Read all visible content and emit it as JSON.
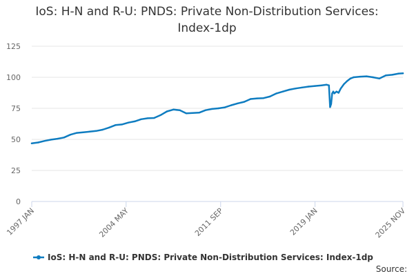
{
  "colors": {
    "series": "#0e7cc0"
  },
  "chart_data": {
    "type": "line",
    "title": "IoS: H-N and R-U: PNDS: Private Non-Distribution Services: Index-1dp",
    "title_lines": [
      "IoS: H-N and R-U: PNDS: Private Non-Distribution Services:",
      "Index-1dp"
    ],
    "xlabel": "",
    "ylabel": "",
    "ylim": [
      0,
      125
    ],
    "yticks": [
      0,
      25,
      50,
      75,
      100,
      125
    ],
    "xlim": [
      1997.0,
      2025.83
    ],
    "xtick_values": [
      1997.0,
      2004.33,
      2011.67,
      2019.0,
      2025.83
    ],
    "xtick_labels": [
      "1997 JAN",
      "2004 MAY",
      "2011 SEP",
      "2019 JAN",
      "2025 NOV"
    ],
    "grid": true,
    "legend_position": "bottom",
    "source_label": "Source:",
    "series": [
      {
        "name": "IoS: H-N and R-U: PNDS: Private Non-Distribution Services: Index-1dp",
        "x": [
          1997.0,
          1997.5,
          1998.0,
          1998.5,
          1999.0,
          1999.5,
          2000.0,
          2000.5,
          2001.0,
          2001.5,
          2002.0,
          2002.5,
          2003.0,
          2003.5,
          2004.0,
          2004.5,
          2005.0,
          2005.5,
          2006.0,
          2006.5,
          2007.0,
          2007.5,
          2008.0,
          2008.5,
          2009.0,
          2009.5,
          2010.0,
          2010.5,
          2011.0,
          2011.5,
          2012.0,
          2012.5,
          2013.0,
          2013.5,
          2014.0,
          2014.5,
          2015.0,
          2015.5,
          2016.0,
          2016.5,
          2017.0,
          2017.5,
          2018.0,
          2018.5,
          2019.0,
          2019.5,
          2019.9,
          2020.08,
          2020.17,
          2020.25,
          2020.33,
          2020.42,
          2020.5,
          2020.67,
          2020.83,
          2021.0,
          2021.25,
          2021.5,
          2021.75,
          2022.0,
          2022.5,
          2023.0,
          2023.5,
          2024.0,
          2024.5,
          2025.0,
          2025.5,
          2025.83
        ],
        "values": [
          46.8,
          47.5,
          48.8,
          49.8,
          50.5,
          51.5,
          53.8,
          55.2,
          55.7,
          56.2,
          56.8,
          57.8,
          59.5,
          61.5,
          62.0,
          63.5,
          64.5,
          66.2,
          67.0,
          67.2,
          69.5,
          72.5,
          74.0,
          73.5,
          71.0,
          71.2,
          71.5,
          73.5,
          74.5,
          75.0,
          75.8,
          77.5,
          79.0,
          80.2,
          82.5,
          83.0,
          83.2,
          84.5,
          87.0,
          88.5,
          90.0,
          91.0,
          91.8,
          92.5,
          93.0,
          93.5,
          94.0,
          93.5,
          76.0,
          78.5,
          87.0,
          88.5,
          87.0,
          88.5,
          87.5,
          91.0,
          94.5,
          97.0,
          99.0,
          100.0,
          100.5,
          100.8,
          100.0,
          99.0,
          101.5,
          102.0,
          103.0,
          103.2
        ]
      }
    ]
  }
}
